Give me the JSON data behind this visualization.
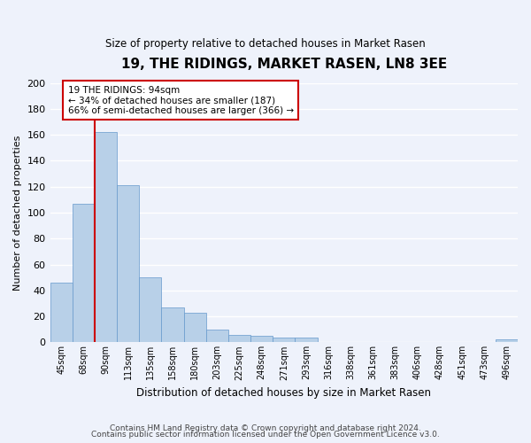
{
  "title": "19, THE RIDINGS, MARKET RASEN, LN8 3EE",
  "subtitle": "Size of property relative to detached houses in Market Rasen",
  "bar_labels": [
    "45sqm",
    "68sqm",
    "90sqm",
    "113sqm",
    "135sqm",
    "158sqm",
    "180sqm",
    "203sqm",
    "225sqm",
    "248sqm",
    "271sqm",
    "293sqm",
    "316sqm",
    "338sqm",
    "361sqm",
    "383sqm",
    "406sqm",
    "428sqm",
    "451sqm",
    "473sqm",
    "496sqm"
  ],
  "bar_values": [
    46,
    107,
    162,
    121,
    50,
    27,
    23,
    10,
    6,
    5,
    4,
    4,
    0,
    0,
    0,
    0,
    0,
    0,
    0,
    0,
    2
  ],
  "bar_color": "#b8d0e8",
  "bar_edge_color": "#6699cc",
  "vline_color": "#cc0000",
  "ylabel": "Number of detached properties",
  "xlabel": "Distribution of detached houses by size in Market Rasen",
  "ylim": [
    0,
    200
  ],
  "yticks": [
    0,
    20,
    40,
    60,
    80,
    100,
    120,
    140,
    160,
    180,
    200
  ],
  "annotation_title": "19 THE RIDINGS: 94sqm",
  "annotation_line1": "← 34% of detached houses are smaller (187)",
  "annotation_line2": "66% of semi-detached houses are larger (366) →",
  "annotation_box_color": "#ffffff",
  "annotation_box_edgecolor": "#cc0000",
  "footer1": "Contains HM Land Registry data © Crown copyright and database right 2024.",
  "footer2": "Contains public sector information licensed under the Open Government Licence v3.0.",
  "background_color": "#eef2fb",
  "plot_bg_color": "#eef2fb",
  "grid_color": "#ffffff"
}
